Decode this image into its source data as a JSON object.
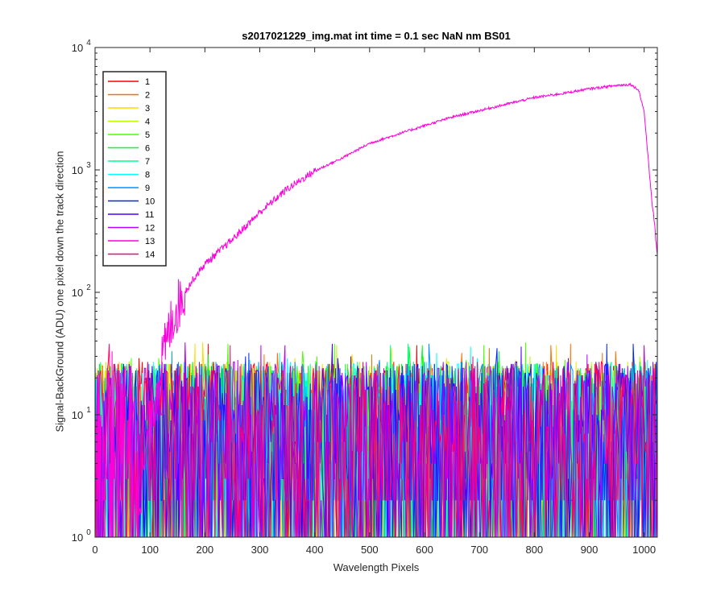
{
  "chart_data": {
    "type": "line",
    "title": "s2017021229_img.mat int time = 0.1 sec  NaN nm BS01",
    "xlabel": "Wavelength Pixels",
    "ylabel": "Signal-BackGround (ADU) one pixel down the track direction",
    "xlim": [
      0,
      1024
    ],
    "ylim": [
      1,
      10000
    ],
    "yscale": "log",
    "grid": false,
    "legend_position": "top-left",
    "x_ticks": [
      "0",
      "100",
      "200",
      "300",
      "400",
      "500",
      "600",
      "700",
      "800",
      "900",
      "1000"
    ],
    "y_ticks": [
      {
        "base": "10",
        "exp": "0"
      },
      {
        "base": "10",
        "exp": "1"
      },
      {
        "base": "10",
        "exp": "2"
      },
      {
        "base": "10",
        "exp": "3"
      },
      {
        "base": "10",
        "exp": "4"
      }
    ],
    "series": [
      {
        "name": "1",
        "color": "#ff0000",
        "kind": "noise",
        "values": []
      },
      {
        "name": "2",
        "color": "#ff6d00",
        "kind": "noise",
        "values": []
      },
      {
        "name": "3",
        "color": "#ffdb00",
        "kind": "noise",
        "values": []
      },
      {
        "name": "4",
        "color": "#b6ff00",
        "kind": "noise",
        "values": []
      },
      {
        "name": "5",
        "color": "#49ff00",
        "kind": "noise",
        "values": []
      },
      {
        "name": "6",
        "color": "#00ff24",
        "kind": "noise",
        "values": []
      },
      {
        "name": "7",
        "color": "#00ff92",
        "kind": "noise",
        "values": []
      },
      {
        "name": "8",
        "color": "#00ffff",
        "kind": "noise",
        "values": []
      },
      {
        "name": "9",
        "color": "#0092ff",
        "kind": "noise",
        "values": []
      },
      {
        "name": "10",
        "color": "#0024ff",
        "kind": "noise",
        "values": []
      },
      {
        "name": "11",
        "color": "#4900ff",
        "kind": "noise",
        "values": []
      },
      {
        "name": "12",
        "color": "#b600ff",
        "kind": "noise",
        "values": []
      },
      {
        "name": "13",
        "color": "#ff00db",
        "kind": "signal",
        "x": [
          80,
          100,
          120,
          140,
          160,
          180,
          200,
          250,
          300,
          350,
          400,
          450,
          500,
          550,
          600,
          650,
          700,
          750,
          800,
          850,
          900,
          950,
          975,
          990,
          1000,
          1010,
          1024
        ],
        "values": [
          2,
          8,
          25,
          60,
          95,
          130,
          170,
          270,
          450,
          700,
          980,
          1250,
          1650,
          1950,
          2300,
          2700,
          3050,
          3450,
          3900,
          4200,
          4600,
          4900,
          5000,
          4500,
          3000,
          900,
          200
        ]
      },
      {
        "name": "14",
        "color": "#ff006d",
        "kind": "noise",
        "values": []
      }
    ]
  }
}
